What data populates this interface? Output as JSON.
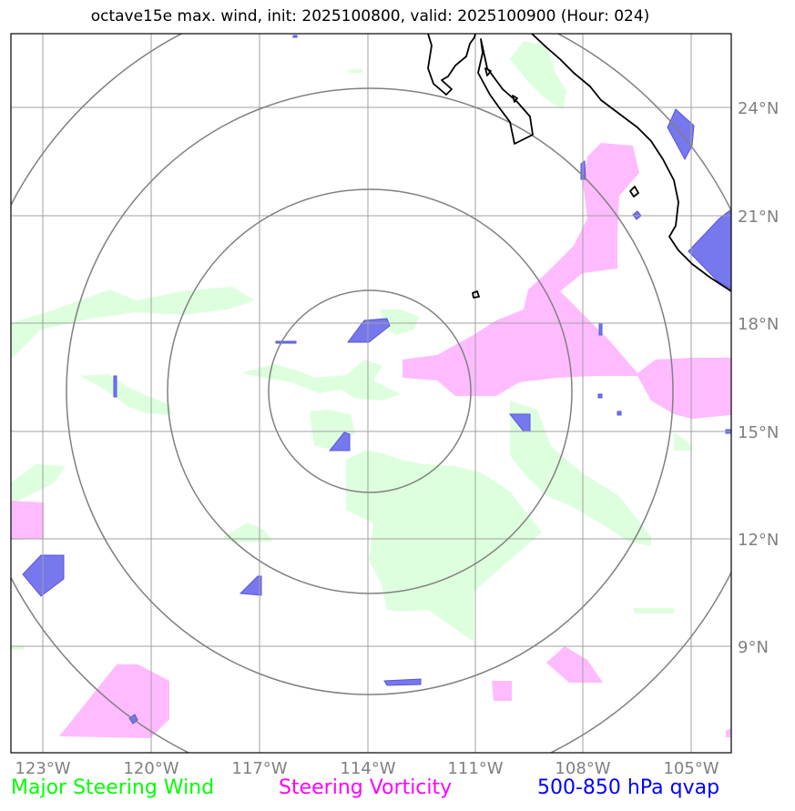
{
  "title": "octave15e max. wind, init: 2025100800, valid: 2025100900 (Hour: 024)",
  "axes": {
    "lon_labels": [
      "123°W",
      "120°W",
      "117°W",
      "114°W",
      "111°W",
      "108°W",
      "105°W"
    ],
    "lat_labels": [
      "24°N",
      "21°N",
      "18°N",
      "15°N",
      "12°N",
      "9°N"
    ]
  },
  "legend": {
    "wind": "Major Steering Wind",
    "vorticity": "Steering Vorticity",
    "qvap": "500-850 hPa qvap"
  },
  "colors": {
    "wind_fill": "#ddffdd",
    "vorticity_fill": "#ffbbff",
    "qvap_fill": "#7777ee",
    "range_rings": "#808080",
    "grid": "#a0a0a0",
    "coastline": "#000000"
  },
  "range_rings_count": 4
}
